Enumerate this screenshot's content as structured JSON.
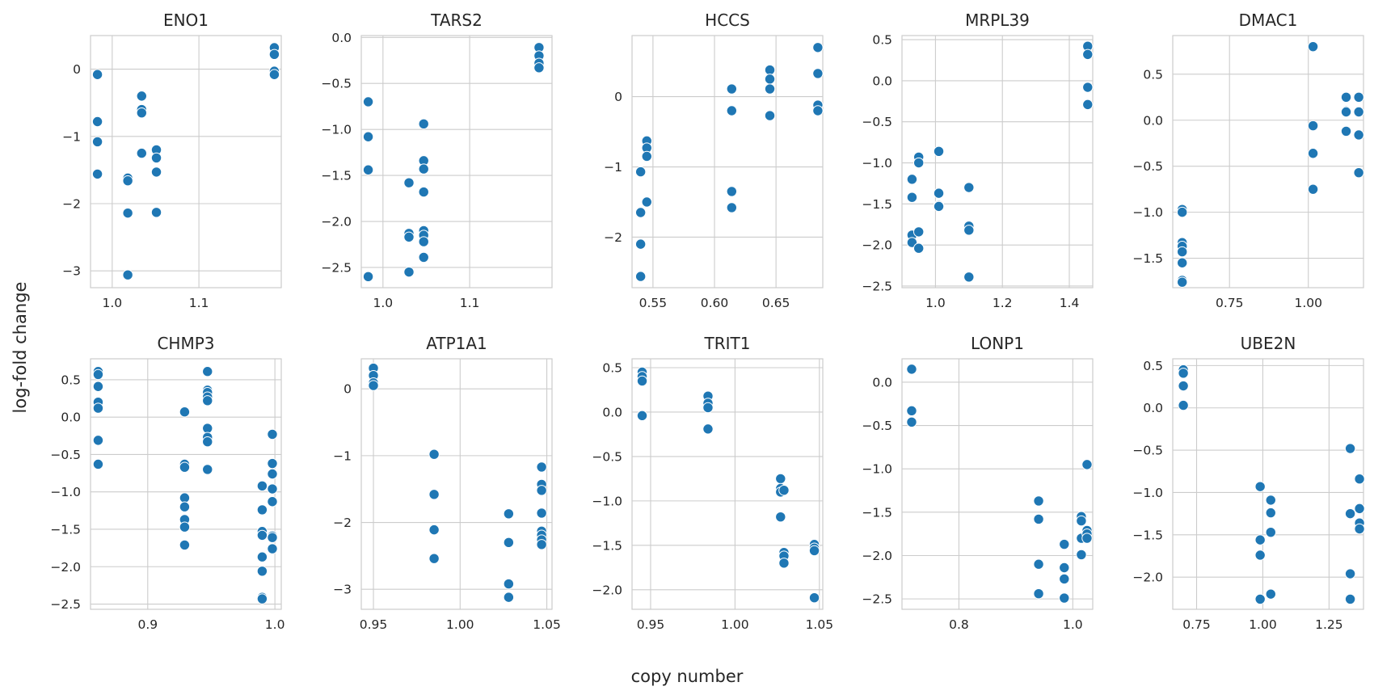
{
  "figure": {
    "xlabel": "copy number",
    "ylabel": "log-fold change"
  },
  "colors": {
    "point": "#1f77b4",
    "grid": "#cccccc",
    "background": "#ffffff"
  },
  "chart_data": [
    {
      "type": "scatter",
      "title": "ENO1",
      "xlim": [
        0.975,
        1.195
      ],
      "ylim": [
        -3.25,
        0.5
      ],
      "xticks": [
        1.0,
        1.1
      ],
      "xtick_labels": [
        "1.0",
        "1.1"
      ],
      "yticks": [
        -3,
        -2,
        -1,
        0
      ],
      "ytick_labels": [
        "−3",
        "−2",
        "−1",
        "0"
      ],
      "points": [
        [
          0.983,
          -0.08
        ],
        [
          0.983,
          -0.78
        ],
        [
          0.983,
          -1.08
        ],
        [
          0.983,
          -1.56
        ],
        [
          1.018,
          -1.62
        ],
        [
          1.018,
          -1.66
        ],
        [
          1.018,
          -2.14
        ],
        [
          1.018,
          -3.06
        ],
        [
          1.034,
          -0.4
        ],
        [
          1.034,
          -0.6
        ],
        [
          1.034,
          -0.65
        ],
        [
          1.034,
          -1.25
        ],
        [
          1.051,
          -1.2
        ],
        [
          1.051,
          -1.32
        ],
        [
          1.051,
          -1.53
        ],
        [
          1.051,
          -2.13
        ],
        [
          1.187,
          0.32
        ],
        [
          1.187,
          0.22
        ],
        [
          1.187,
          -0.03
        ],
        [
          1.187,
          -0.08
        ]
      ]
    },
    {
      "type": "scatter",
      "title": "TARS2",
      "xlim": [
        0.975,
        1.195
      ],
      "ylim": [
        -2.72,
        0.02
      ],
      "xticks": [
        1.0,
        1.1
      ],
      "xtick_labels": [
        "1.0",
        "1.1"
      ],
      "yticks": [
        -2.5,
        -2.0,
        -1.5,
        -1.0,
        -0.5,
        0.0
      ],
      "ytick_labels": [
        "−2.5",
        "−2.0",
        "−1.5",
        "−1.0",
        "−0.5",
        "0.0"
      ],
      "points": [
        [
          0.983,
          -0.7
        ],
        [
          0.983,
          -1.08
        ],
        [
          0.983,
          -1.44
        ],
        [
          0.983,
          -2.6
        ],
        [
          1.03,
          -1.58
        ],
        [
          1.03,
          -2.13
        ],
        [
          1.03,
          -2.17
        ],
        [
          1.03,
          -2.55
        ],
        [
          1.047,
          -0.94
        ],
        [
          1.047,
          -1.34
        ],
        [
          1.047,
          -1.43
        ],
        [
          1.047,
          -1.68
        ],
        [
          1.047,
          -2.1
        ],
        [
          1.047,
          -2.15
        ],
        [
          1.047,
          -2.22
        ],
        [
          1.047,
          -2.39
        ],
        [
          1.18,
          -0.11
        ],
        [
          1.18,
          -0.2
        ],
        [
          1.18,
          -0.28
        ],
        [
          1.18,
          -0.33
        ]
      ]
    },
    {
      "type": "scatter",
      "title": "HCCS",
      "xlim": [
        0.533,
        0.688
      ],
      "ylim": [
        -2.72,
        0.87
      ],
      "xticks": [
        0.55,
        0.6,
        0.65
      ],
      "xtick_labels": [
        "0.55",
        "0.60",
        "0.65"
      ],
      "yticks": [
        -2,
        -1,
        0
      ],
      "ytick_labels": [
        "−2",
        "−1",
        "0"
      ],
      "points": [
        [
          0.54,
          -1.07
        ],
        [
          0.54,
          -1.65
        ],
        [
          0.54,
          -2.1
        ],
        [
          0.54,
          -2.56
        ],
        [
          0.545,
          -0.63
        ],
        [
          0.545,
          -0.73
        ],
        [
          0.545,
          -0.85
        ],
        [
          0.545,
          -1.5
        ],
        [
          0.614,
          0.11
        ],
        [
          0.614,
          -0.2
        ],
        [
          0.614,
          -1.35
        ],
        [
          0.614,
          -1.58
        ],
        [
          0.645,
          0.38
        ],
        [
          0.645,
          0.25
        ],
        [
          0.645,
          0.11
        ],
        [
          0.645,
          -0.27
        ],
        [
          0.684,
          0.7
        ],
        [
          0.684,
          0.33
        ],
        [
          0.684,
          -0.12
        ],
        [
          0.684,
          -0.2
        ]
      ]
    },
    {
      "type": "scatter",
      "title": "MRPL39",
      "xlim": [
        0.9,
        1.47
      ],
      "ylim": [
        -2.52,
        0.55
      ],
      "xticks": [
        1.0,
        1.2,
        1.4
      ],
      "xtick_labels": [
        "1.0",
        "1.2",
        "1.4"
      ],
      "yticks": [
        -2.5,
        -2.0,
        -1.5,
        -1.0,
        -0.5,
        0.0,
        0.5
      ],
      "ytick_labels": [
        "−2.5",
        "−2.0",
        "−1.5",
        "−1.0",
        "−0.5",
        "0.0",
        "0.5"
      ],
      "points": [
        [
          0.93,
          -1.2
        ],
        [
          0.93,
          -1.42
        ],
        [
          0.93,
          -1.88
        ],
        [
          0.93,
          -1.97
        ],
        [
          0.95,
          -0.93
        ],
        [
          0.95,
          -1.0
        ],
        [
          0.95,
          -1.84
        ],
        [
          0.95,
          -2.04
        ],
        [
          1.01,
          -0.86
        ],
        [
          1.01,
          -1.37
        ],
        [
          1.01,
          -1.52
        ],
        [
          1.01,
          -1.53
        ],
        [
          1.1,
          -1.3
        ],
        [
          1.1,
          -1.77
        ],
        [
          1.1,
          -1.82
        ],
        [
          1.1,
          -2.39
        ],
        [
          1.455,
          0.42
        ],
        [
          1.455,
          0.32
        ],
        [
          1.455,
          -0.08
        ],
        [
          1.455,
          -0.29
        ]
      ]
    },
    {
      "type": "scatter",
      "title": "DMAC1",
      "xlim": [
        0.57,
        1.175
      ],
      "ylim": [
        -1.82,
        0.92
      ],
      "xticks": [
        0.75,
        1.0
      ],
      "xtick_labels": [
        "0.75",
        "1.00"
      ],
      "yticks": [
        -1.5,
        -1.0,
        -0.5,
        0.0,
        0.5
      ],
      "ytick_labels": [
        "−1.5",
        "−1.0",
        "−0.5",
        "0.0",
        "0.5"
      ],
      "points": [
        [
          0.6,
          -0.97
        ],
        [
          0.6,
          -1.0
        ],
        [
          0.6,
          -1.33
        ],
        [
          0.6,
          -1.37
        ],
        [
          0.6,
          -1.43
        ],
        [
          0.6,
          -1.55
        ],
        [
          0.6,
          -1.74
        ],
        [
          0.6,
          -1.76
        ],
        [
          1.015,
          0.8
        ],
        [
          1.015,
          -0.06
        ],
        [
          1.015,
          -0.36
        ],
        [
          1.015,
          -0.75
        ],
        [
          1.12,
          0.25
        ],
        [
          1.12,
          0.1
        ],
        [
          1.12,
          0.09
        ],
        [
          1.12,
          -0.12
        ],
        [
          1.16,
          0.25
        ],
        [
          1.16,
          0.09
        ],
        [
          1.16,
          -0.16
        ],
        [
          1.16,
          -0.57
        ]
      ]
    },
    {
      "type": "scatter",
      "title": "CHMP3",
      "xlim": [
        0.855,
        1.005
      ],
      "ylim": [
        -2.57,
        0.78
      ],
      "xticks": [
        0.9,
        1.0
      ],
      "xtick_labels": [
        "0.9",
        "1.0"
      ],
      "yticks": [
        -2.5,
        -2.0,
        -1.5,
        -1.0,
        -0.5,
        0.0,
        0.5
      ],
      "ytick_labels": [
        "−2.5",
        "−2.0",
        "−1.5",
        "−1.0",
        "−0.5",
        "0.0",
        "0.5"
      ],
      "points": [
        [
          0.861,
          0.61
        ],
        [
          0.861,
          0.57
        ],
        [
          0.861,
          0.41
        ],
        [
          0.861,
          0.2
        ],
        [
          0.861,
          0.12
        ],
        [
          0.861,
          -0.31
        ],
        [
          0.861,
          -0.63
        ],
        [
          0.929,
          0.07
        ],
        [
          0.929,
          -0.63
        ],
        [
          0.929,
          -0.67
        ],
        [
          0.929,
          -1.08
        ],
        [
          0.929,
          -1.2
        ],
        [
          0.929,
          -1.37
        ],
        [
          0.929,
          -1.47
        ],
        [
          0.929,
          -1.71
        ],
        [
          0.947,
          0.61
        ],
        [
          0.947,
          0.36
        ],
        [
          0.947,
          0.33
        ],
        [
          0.947,
          0.27
        ],
        [
          0.947,
          0.22
        ],
        [
          0.947,
          -0.15
        ],
        [
          0.947,
          -0.27
        ],
        [
          0.947,
          -0.33
        ],
        [
          0.947,
          -0.7
        ],
        [
          0.99,
          -0.92
        ],
        [
          0.99,
          -1.24
        ],
        [
          0.99,
          -1.53
        ],
        [
          0.99,
          -1.58
        ],
        [
          0.99,
          -1.87
        ],
        [
          0.99,
          -2.06
        ],
        [
          0.99,
          -2.41
        ],
        [
          0.99,
          -2.43
        ],
        [
          0.998,
          -0.23
        ],
        [
          0.998,
          -0.62
        ],
        [
          0.998,
          -0.76
        ],
        [
          0.998,
          -0.96
        ],
        [
          0.998,
          -1.13
        ],
        [
          0.998,
          -1.59
        ],
        [
          0.998,
          -1.61
        ],
        [
          0.998,
          -1.76
        ]
      ]
    },
    {
      "type": "scatter",
      "title": "ATP1A1",
      "xlim": [
        0.943,
        1.053
      ],
      "ylim": [
        -3.3,
        0.45
      ],
      "xticks": [
        0.95,
        1.0,
        1.05
      ],
      "xtick_labels": [
        "0.95",
        "1.00",
        "1.05"
      ],
      "yticks": [
        -3,
        -2,
        -1,
        0
      ],
      "ytick_labels": [
        "−3",
        "−2",
        "−1",
        "0"
      ],
      "points": [
        [
          0.95,
          0.31
        ],
        [
          0.95,
          0.2
        ],
        [
          0.95,
          0.09
        ],
        [
          0.95,
          0.05
        ],
        [
          0.985,
          -0.98
        ],
        [
          0.985,
          -1.58
        ],
        [
          0.985,
          -2.11
        ],
        [
          0.985,
          -2.54
        ],
        [
          1.028,
          -1.87
        ],
        [
          1.028,
          -2.3
        ],
        [
          1.028,
          -2.92
        ],
        [
          1.028,
          -3.12
        ],
        [
          1.047,
          -1.17
        ],
        [
          1.047,
          -1.43
        ],
        [
          1.047,
          -1.52
        ],
        [
          1.047,
          -1.86
        ],
        [
          1.047,
          -2.13
        ],
        [
          1.047,
          -2.19
        ],
        [
          1.047,
          -2.26
        ],
        [
          1.047,
          -2.33
        ]
      ]
    },
    {
      "type": "scatter",
      "title": "TRIT1",
      "xlim": [
        0.939,
        1.052
      ],
      "ylim": [
        -2.22,
        0.6
      ],
      "xticks": [
        0.95,
        1.0,
        1.05
      ],
      "xtick_labels": [
        "0.95",
        "1.00",
        "1.05"
      ],
      "yticks": [
        -2.0,
        -1.5,
        -1.0,
        -0.5,
        0.0,
        0.5
      ],
      "ytick_labels": [
        "−2.0",
        "−1.5",
        "−1.0",
        "−0.5",
        "0.0",
        "0.5"
      ],
      "points": [
        [
          0.945,
          0.45
        ],
        [
          0.945,
          0.4
        ],
        [
          0.945,
          0.35
        ],
        [
          0.945,
          -0.04
        ],
        [
          0.984,
          0.18
        ],
        [
          0.984,
          0.1
        ],
        [
          0.984,
          0.05
        ],
        [
          0.984,
          -0.19
        ],
        [
          1.027,
          -0.75
        ],
        [
          1.027,
          -0.86
        ],
        [
          1.027,
          -0.9
        ],
        [
          1.027,
          -1.18
        ],
        [
          1.029,
          -1.58
        ],
        [
          1.029,
          -1.62
        ],
        [
          1.029,
          -1.7
        ],
        [
          1.029,
          -0.88
        ],
        [
          1.047,
          -1.49
        ],
        [
          1.047,
          -1.53
        ],
        [
          1.047,
          -1.56
        ],
        [
          1.047,
          -2.09
        ]
      ]
    },
    {
      "type": "scatter",
      "title": "LONP1",
      "xlim": [
        0.7,
        1.035
      ],
      "ylim": [
        -2.62,
        0.27
      ],
      "xticks": [
        0.8,
        1.0
      ],
      "xtick_labels": [
        "0.8",
        "1.0"
      ],
      "yticks": [
        -2.5,
        -2.0,
        -1.5,
        -1.0,
        -0.5,
        0.0
      ],
      "ytick_labels": [
        "−2.5",
        "−2.0",
        "−1.5",
        "−1.0",
        "−0.5",
        "0.0"
      ],
      "points": [
        [
          0.717,
          0.15
        ],
        [
          0.717,
          -0.33
        ],
        [
          0.717,
          -0.46
        ],
        [
          0.94,
          -1.37
        ],
        [
          0.94,
          -1.58
        ],
        [
          0.94,
          -2.1
        ],
        [
          0.94,
          -2.44
        ],
        [
          0.985,
          -1.87
        ],
        [
          0.985,
          -2.14
        ],
        [
          0.985,
          -2.27
        ],
        [
          0.985,
          -2.49
        ],
        [
          1.015,
          -1.55
        ],
        [
          1.015,
          -1.6
        ],
        [
          1.015,
          -1.8
        ],
        [
          1.015,
          -1.99
        ],
        [
          1.025,
          -0.95
        ],
        [
          1.025,
          -1.71
        ],
        [
          1.025,
          -1.75
        ],
        [
          1.025,
          -1.8
        ]
      ]
    },
    {
      "type": "scatter",
      "title": "UBE2N",
      "xlim": [
        0.66,
        1.38
      ],
      "ylim": [
        -2.38,
        0.58
      ],
      "xticks": [
        0.75,
        1.0,
        1.25
      ],
      "xtick_labels": [
        "0.75",
        "1.00",
        "1.25"
      ],
      "yticks": [
        -2.0,
        -1.5,
        -1.0,
        -0.5,
        0.0,
        0.5
      ],
      "ytick_labels": [
        "−2.0",
        "−1.5",
        "−1.0",
        "−0.5",
        "0.0",
        "0.5"
      ],
      "points": [
        [
          0.7,
          0.45
        ],
        [
          0.7,
          0.41
        ],
        [
          0.7,
          0.26
        ],
        [
          0.7,
          0.03
        ],
        [
          0.99,
          -0.93
        ],
        [
          0.99,
          -1.56
        ],
        [
          0.99,
          -1.74
        ],
        [
          0.99,
          -2.26
        ],
        [
          1.03,
          -1.09
        ],
        [
          1.03,
          -1.24
        ],
        [
          1.03,
          -1.47
        ],
        [
          1.03,
          -2.2
        ],
        [
          1.33,
          -0.48
        ],
        [
          1.33,
          -1.25
        ],
        [
          1.33,
          -1.96
        ],
        [
          1.33,
          -2.26
        ],
        [
          1.365,
          -0.84
        ],
        [
          1.365,
          -1.19
        ],
        [
          1.365,
          -1.36
        ],
        [
          1.365,
          -1.43
        ]
      ]
    }
  ]
}
